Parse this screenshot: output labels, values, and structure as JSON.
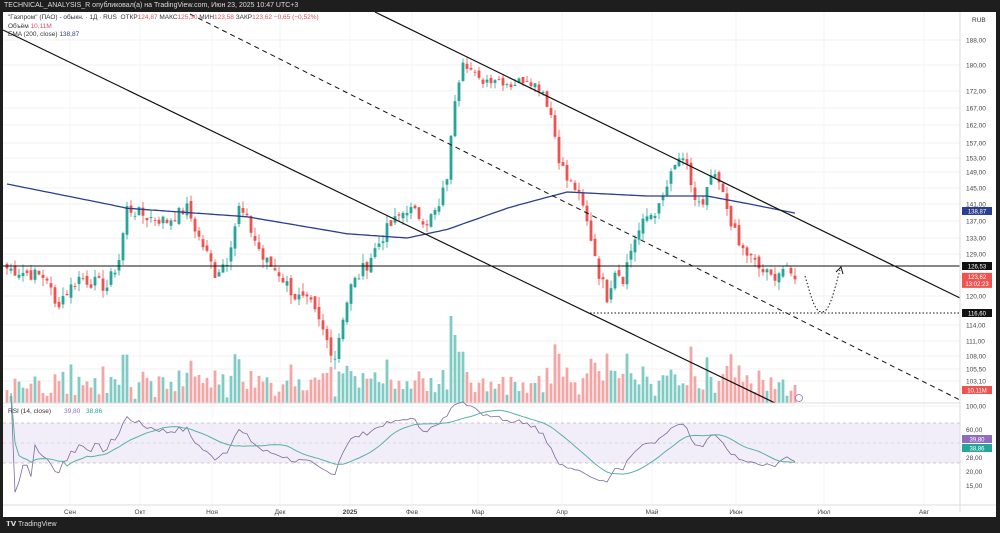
{
  "header": {
    "publisher": "TECHNICAL_ANALYSIS_R опубликовал(а) на TradingView.com, Июн 23, 2025 10:47 UTC+3"
  },
  "legend": {
    "symbol": "\"Газпром\" (ПАО) - обыкн. · 1Д · RUS",
    "open_label": "ОТКР",
    "open": "124,87",
    "high_label": "МАКС",
    "high": "125,30",
    "low_label": "МИН",
    "low": "123,58",
    "close_label": "ЗАКР",
    "close": "123,62",
    "change": "−0,65 (−0,52%)",
    "volume_label": "Объём",
    "volume": "10,11M",
    "ema_label": "EMA (200, close)",
    "ema": "138,87",
    "rsi_label": "RSI (14, close)",
    "rsi": "39,80",
    "rsi_ma": "38,86"
  },
  "footer": {
    "brand": "TradingView"
  },
  "chart_data": {
    "type": "candlestick",
    "currency": "RUB",
    "x_labels": [
      "Сен",
      "Окт",
      "Ноя",
      "Дек",
      "2025",
      "Фев",
      "Мар",
      "Апр",
      "Май",
      "Июн",
      "Июл",
      "Авг"
    ],
    "price_ticks": [
      "188,00",
      "180,00",
      "172,00",
      "167,00",
      "162,00",
      "157,00",
      "153,00",
      "149,00",
      "145,00",
      "141,00",
      "137,00",
      "133,00",
      "129,00",
      "120,00",
      "114,00",
      "111,00",
      "108,00",
      "105,50",
      "103,10",
      "100,00"
    ],
    "rsi_ticks": [
      "60,00",
      "28,00",
      "20,00",
      "15,00"
    ],
    "close_keypoints": [
      [
        0,
        126
      ],
      [
        10,
        124
      ],
      [
        12,
        118
      ],
      [
        18,
        124
      ],
      [
        25,
        122
      ],
      [
        28,
        128
      ],
      [
        30,
        140
      ],
      [
        35,
        138
      ],
      [
        40,
        137
      ],
      [
        45,
        140
      ],
      [
        48,
        133
      ],
      [
        52,
        125
      ],
      [
        55,
        128
      ],
      [
        58,
        140
      ],
      [
        60,
        137
      ],
      [
        64,
        128
      ],
      [
        68,
        125
      ],
      [
        72,
        120
      ],
      [
        76,
        118
      ],
      [
        80,
        111
      ],
      [
        82,
        108
      ],
      [
        84,
        116
      ],
      [
        86,
        122
      ],
      [
        90,
        127
      ],
      [
        95,
        135
      ],
      [
        100,
        140
      ],
      [
        105,
        137
      ],
      [
        108,
        140
      ],
      [
        110,
        148
      ],
      [
        111,
        158
      ],
      [
        112,
        170
      ],
      [
        114,
        182
      ],
      [
        118,
        175
      ],
      [
        122,
        176
      ],
      [
        126,
        174
      ],
      [
        130,
        176
      ],
      [
        134,
        172
      ],
      [
        136,
        165
      ],
      [
        138,
        153
      ],
      [
        140,
        147
      ],
      [
        142,
        145
      ],
      [
        144,
        140
      ],
      [
        146,
        133
      ],
      [
        148,
        125
      ],
      [
        150,
        120
      ],
      [
        152,
        126
      ],
      [
        154,
        124
      ],
      [
        157,
        133
      ],
      [
        160,
        138
      ],
      [
        163,
        140
      ],
      [
        166,
        148
      ],
      [
        168,
        153
      ],
      [
        170,
        150
      ],
      [
        172,
        142
      ],
      [
        174,
        140
      ],
      [
        176,
        148
      ],
      [
        178,
        146
      ],
      [
        180,
        140
      ],
      [
        183,
        131
      ],
      [
        186,
        128
      ],
      [
        188,
        126
      ],
      [
        191,
        124
      ],
      [
        194,
        126
      ],
      [
        197,
        123.62
      ]
    ],
    "ema_keypoints": [
      [
        0,
        146
      ],
      [
        30,
        140
      ],
      [
        60,
        138
      ],
      [
        85,
        134
      ],
      [
        100,
        133
      ],
      [
        110,
        135
      ],
      [
        125,
        140
      ],
      [
        140,
        144
      ],
      [
        160,
        143
      ],
      [
        175,
        143
      ],
      [
        197,
        138.87
      ]
    ],
    "levels": [
      {
        "price": 126.53,
        "label": "126,53",
        "style": "solid"
      },
      {
        "price": 116.6,
        "label": "116,60",
        "style": "dotted"
      }
    ],
    "last_price": {
      "label": "123,62",
      "countdown": "13:02:23"
    },
    "ema_value": {
      "label": "138,87"
    },
    "volume_last": {
      "label": "10,11M"
    },
    "rsi_values": {
      "rsi": "39,80",
      "ma": "38,86"
    }
  }
}
